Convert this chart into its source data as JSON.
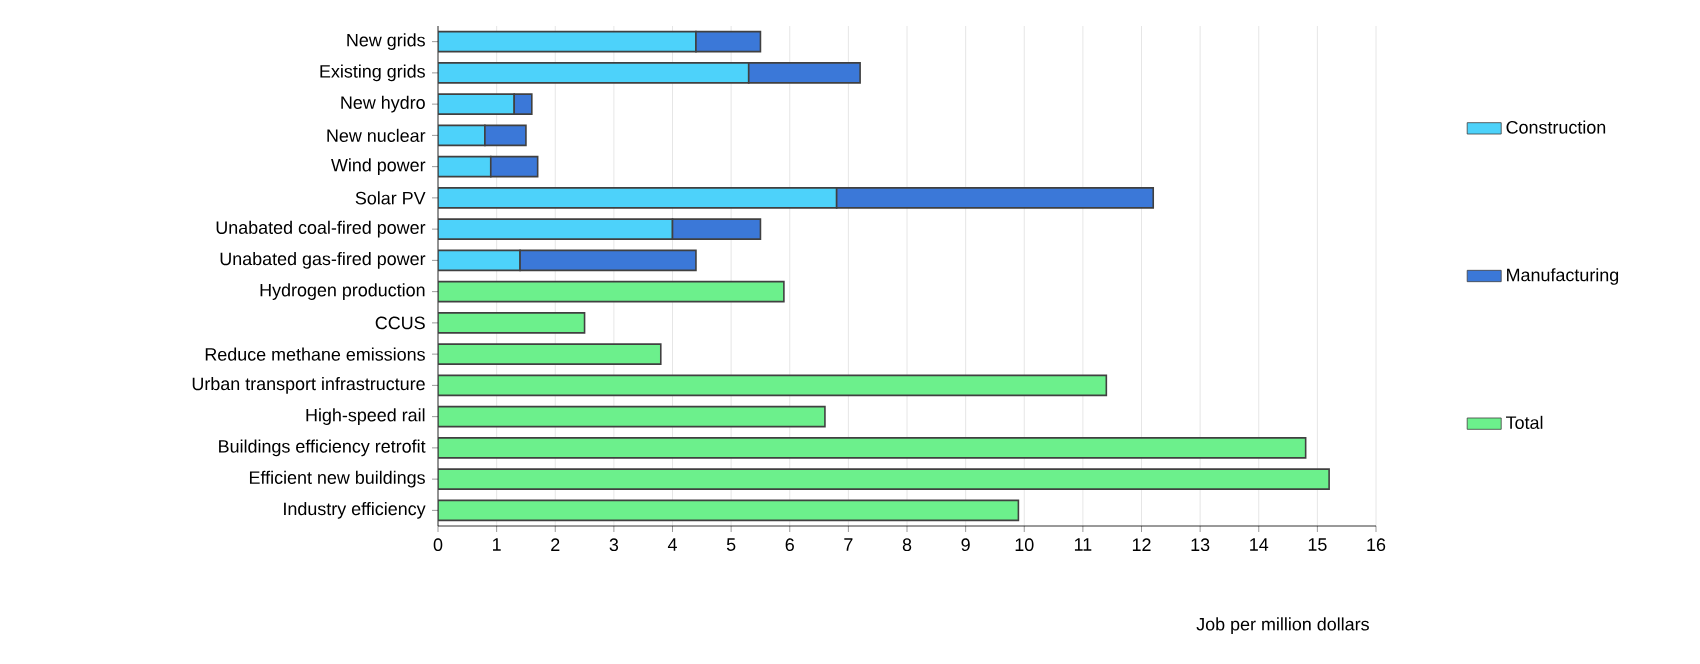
{
  "chart_data": {
    "type": "bar",
    "orientation": "horizontal",
    "stacked": true,
    "categories": [
      "New grids",
      "Existing grids",
      "New hydro",
      "New nuclear",
      "Wind power",
      "Solar PV",
      "Unabated coal-fired power",
      "Unabated gas-fired power",
      "Hydrogen production",
      "CCUS",
      "Reduce methane emissions",
      "Urban transport infrastructure",
      "High-speed rail",
      "Buildings efficiency retrofit",
      "Efficient new buildings",
      "Industry efficiency"
    ],
    "series": [
      {
        "name": "Construction",
        "color": "#4dd2fa",
        "values": [
          4.4,
          5.3,
          1.3,
          0.8,
          0.9,
          6.8,
          4.0,
          1.4,
          null,
          null,
          null,
          null,
          null,
          null,
          null,
          null
        ]
      },
      {
        "name": "Manufacturing",
        "color": "#3b78d8",
        "values": [
          1.1,
          1.9,
          0.3,
          0.7,
          0.8,
          5.4,
          1.5,
          3.0,
          null,
          null,
          null,
          null,
          null,
          null,
          null,
          null
        ]
      },
      {
        "name": "Total",
        "color": "#6cf08c",
        "values": [
          null,
          null,
          null,
          null,
          null,
          null,
          null,
          null,
          5.9,
          2.5,
          3.8,
          11.4,
          6.6,
          14.8,
          15.2,
          9.9
        ]
      }
    ],
    "xlabel": "Job per million dollars",
    "xlim": [
      0,
      16
    ],
    "xticks": [
      0,
      1,
      2,
      3,
      4,
      5,
      6,
      7,
      8,
      9,
      10,
      11,
      12,
      13,
      14,
      15,
      16
    ],
    "grid": "x",
    "legend": "right"
  }
}
